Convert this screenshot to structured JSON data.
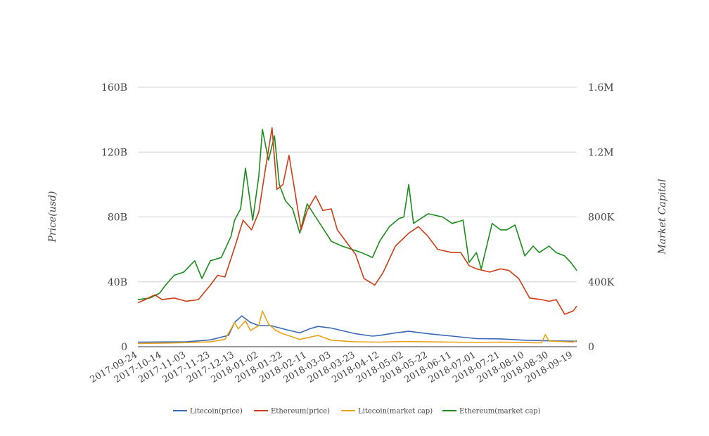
{
  "chart_data": {
    "type": "line",
    "x_axis": {
      "type": "date",
      "range": [
        "2017-09-24",
        "2018-09-22"
      ],
      "tick_labels": [
        "2017-09-24",
        "2017-10-14",
        "2017-11-03",
        "2017-11-23",
        "2017-12-13",
        "2018-01-02",
        "2018-01-22",
        "2018-02-11",
        "2018-03-03",
        "2018-03-23",
        "2018-04-12",
        "2018-05-02",
        "2018-05-22",
        "2018-06-11",
        "2018-07-01",
        "2018-07-21",
        "2018-08-10",
        "2018-08-30",
        "2018-09-19"
      ]
    },
    "y_left": {
      "label": "Price(usd)",
      "range": [
        0,
        160000000000
      ],
      "ticks": [
        0,
        40000000000,
        80000000000,
        120000000000,
        160000000000
      ],
      "tick_labels": [
        "0",
        "40B",
        "80B",
        "120B",
        "160B"
      ]
    },
    "y_right": {
      "label": "Market Capital",
      "range": [
        0,
        1600000
      ],
      "ticks": [
        0,
        400000,
        800000,
        1200000,
        1600000
      ],
      "tick_labels": [
        "0",
        "400K",
        "800K",
        "1.2M",
        "1.6M"
      ]
    },
    "grid": "horizontal",
    "legend_position": "bottom",
    "series": [
      {
        "name": "Litecoin(price)",
        "color": "#3a68b8",
        "axis": "left",
        "points": [
          [
            "2017-09-24",
            2800000000.0
          ],
          [
            "2017-10-14",
            2900000000.0
          ],
          [
            "2017-11-03",
            3000000000.0
          ],
          [
            "2017-11-23",
            4200000000.0
          ],
          [
            "2017-12-08",
            7000000000.0
          ],
          [
            "2017-12-13",
            15000000000.0
          ],
          [
            "2017-12-19",
            19000000000.0
          ],
          [
            "2017-12-26",
            15000000000.0
          ],
          [
            "2018-01-02",
            13000000000.0
          ],
          [
            "2018-01-12",
            13000000000.0
          ],
          [
            "2018-01-22",
            11000000000.0
          ],
          [
            "2018-02-05",
            8500000000.0
          ],
          [
            "2018-02-13",
            11000000000.0
          ],
          [
            "2018-02-20",
            12500000000.0
          ],
          [
            "2018-03-03",
            11500000000.0
          ],
          [
            "2018-03-23",
            8000000000.0
          ],
          [
            "2018-04-06",
            6500000000.0
          ],
          [
            "2018-04-12",
            7000000000.0
          ],
          [
            "2018-04-25",
            8500000000.0
          ],
          [
            "2018-05-06",
            9500000000.0
          ],
          [
            "2018-05-22",
            8000000000.0
          ],
          [
            "2018-06-11",
            6500000000.0
          ],
          [
            "2018-07-01",
            5000000000.0
          ],
          [
            "2018-07-21",
            4800000000.0
          ],
          [
            "2018-08-10",
            4000000000.0
          ],
          [
            "2018-08-30",
            3600000000.0
          ],
          [
            "2018-09-19",
            3400000000.0
          ],
          [
            "2018-09-22",
            3300000000.0
          ]
        ]
      },
      {
        "name": "Ethereum(price)",
        "color": "#cc3d14",
        "axis": "left",
        "points": [
          [
            "2017-09-24",
            27000000000.0
          ],
          [
            "2017-09-30",
            29000000000.0
          ],
          [
            "2017-10-08",
            32000000000.0
          ],
          [
            "2017-10-14",
            29000000000.0
          ],
          [
            "2017-10-24",
            30000000000.0
          ],
          [
            "2017-11-03",
            28000000000.0
          ],
          [
            "2017-11-13",
            29000000000.0
          ],
          [
            "2017-11-23",
            38000000000.0
          ],
          [
            "2017-11-29",
            44000000000.0
          ],
          [
            "2017-12-05",
            43000000000.0
          ],
          [
            "2017-12-13",
            61000000000.0
          ],
          [
            "2017-12-20",
            78000000000.0
          ],
          [
            "2017-12-27",
            72000000000.0
          ],
          [
            "2018-01-02",
            83000000000.0
          ],
          [
            "2018-01-08",
            112000000000.0
          ],
          [
            "2018-01-13",
            135000000000.0
          ],
          [
            "2018-01-17",
            97000000000.0
          ],
          [
            "2018-01-22",
            100000000000.0
          ],
          [
            "2018-01-27",
            118000000000.0
          ],
          [
            "2018-02-01",
            95000000000.0
          ],
          [
            "2018-02-06",
            72000000000.0
          ],
          [
            "2018-02-11",
            84000000000.0
          ],
          [
            "2018-02-18",
            93000000000.0
          ],
          [
            "2018-02-24",
            84000000000.0
          ],
          [
            "2018-03-03",
            85000000000.0
          ],
          [
            "2018-03-08",
            72000000000.0
          ],
          [
            "2018-03-18",
            62000000000.0
          ],
          [
            "2018-03-23",
            57000000000.0
          ],
          [
            "2018-03-30",
            42000000000.0
          ],
          [
            "2018-04-08",
            38000000000.0
          ],
          [
            "2018-04-15",
            46000000000.0
          ],
          [
            "2018-04-25",
            62000000000.0
          ],
          [
            "2018-05-06",
            70000000000.0
          ],
          [
            "2018-05-14",
            74000000000.0
          ],
          [
            "2018-05-22",
            68000000000.0
          ],
          [
            "2018-05-30",
            60000000000.0
          ],
          [
            "2018-06-11",
            58000000000.0
          ],
          [
            "2018-06-18",
            58000000000.0
          ],
          [
            "2018-06-25",
            50000000000.0
          ],
          [
            "2018-07-01",
            48000000000.0
          ],
          [
            "2018-07-12",
            46000000000.0
          ],
          [
            "2018-07-21",
            48000000000.0
          ],
          [
            "2018-07-28",
            47000000000.0
          ],
          [
            "2018-08-05",
            42000000000.0
          ],
          [
            "2018-08-14",
            30000000000.0
          ],
          [
            "2018-08-24",
            29000000000.0
          ],
          [
            "2018-08-30",
            28000000000.0
          ],
          [
            "2018-09-05",
            29000000000.0
          ],
          [
            "2018-09-12",
            20000000000.0
          ],
          [
            "2018-09-19",
            22000000000.0
          ],
          [
            "2018-09-22",
            25000000000.0
          ]
        ]
      },
      {
        "name": "Litecoin(market cap)",
        "color": "#e8a317",
        "axis": "right",
        "points": [
          [
            "2017-09-24",
            20000
          ],
          [
            "2017-10-14",
            22000
          ],
          [
            "2017-11-03",
            25000
          ],
          [
            "2017-11-23",
            30000
          ],
          [
            "2017-12-05",
            45000
          ],
          [
            "2017-12-10",
            110000
          ],
          [
            "2017-12-13",
            150000
          ],
          [
            "2017-12-16",
            110000
          ],
          [
            "2017-12-22",
            160000
          ],
          [
            "2017-12-26",
            100000
          ],
          [
            "2018-01-02",
            130000
          ],
          [
            "2018-01-05",
            220000
          ],
          [
            "2018-01-10",
            140000
          ],
          [
            "2018-01-16",
            100000
          ],
          [
            "2018-01-22",
            80000
          ],
          [
            "2018-02-05",
            45000
          ],
          [
            "2018-02-11",
            55000
          ],
          [
            "2018-02-20",
            70000
          ],
          [
            "2018-03-03",
            40000
          ],
          [
            "2018-03-23",
            30000
          ],
          [
            "2018-04-12",
            28000
          ],
          [
            "2018-05-02",
            32000
          ],
          [
            "2018-05-22",
            30000
          ],
          [
            "2018-06-11",
            28000
          ],
          [
            "2018-07-01",
            26000
          ],
          [
            "2018-07-21",
            28000
          ],
          [
            "2018-08-10",
            25000
          ],
          [
            "2018-08-24",
            24000
          ],
          [
            "2018-08-27",
            75000
          ],
          [
            "2018-08-30",
            35000
          ],
          [
            "2018-09-19",
            28000
          ],
          [
            "2018-09-22",
            40000
          ]
        ]
      },
      {
        "name": "Ethereum(market cap)",
        "color": "#1b8c1b",
        "axis": "right",
        "points": [
          [
            "2017-09-24",
            290000
          ],
          [
            "2017-10-04",
            300000
          ],
          [
            "2017-10-12",
            330000
          ],
          [
            "2017-10-17",
            380000
          ],
          [
            "2017-10-24",
            440000
          ],
          [
            "2017-11-01",
            460000
          ],
          [
            "2017-11-10",
            530000
          ],
          [
            "2017-11-16",
            420000
          ],
          [
            "2017-11-23",
            530000
          ],
          [
            "2017-12-02",
            550000
          ],
          [
            "2017-12-10",
            680000
          ],
          [
            "2017-12-13",
            780000
          ],
          [
            "2017-12-18",
            850000
          ],
          [
            "2017-12-22",
            1100000
          ],
          [
            "2017-12-28",
            780000
          ],
          [
            "2018-01-02",
            1050000
          ],
          [
            "2018-01-05",
            1340000
          ],
          [
            "2018-01-10",
            1150000
          ],
          [
            "2018-01-15",
            1300000
          ],
          [
            "2018-01-19",
            1000000
          ],
          [
            "2018-01-24",
            900000
          ],
          [
            "2018-01-30",
            850000
          ],
          [
            "2018-02-05",
            700000
          ],
          [
            "2018-02-11",
            880000
          ],
          [
            "2018-02-18",
            800000
          ],
          [
            "2018-02-25",
            720000
          ],
          [
            "2018-03-03",
            650000
          ],
          [
            "2018-03-12",
            620000
          ],
          [
            "2018-03-20",
            600000
          ],
          [
            "2018-03-28",
            580000
          ],
          [
            "2018-04-06",
            550000
          ],
          [
            "2018-04-12",
            650000
          ],
          [
            "2018-04-20",
            740000
          ],
          [
            "2018-04-28",
            790000
          ],
          [
            "2018-05-02",
            800000
          ],
          [
            "2018-05-06",
            1000000
          ],
          [
            "2018-05-10",
            760000
          ],
          [
            "2018-05-22",
            820000
          ],
          [
            "2018-06-03",
            800000
          ],
          [
            "2018-06-11",
            760000
          ],
          [
            "2018-06-20",
            780000
          ],
          [
            "2018-06-25",
            520000
          ],
          [
            "2018-07-01",
            580000
          ],
          [
            "2018-07-05",
            480000
          ],
          [
            "2018-07-14",
            760000
          ],
          [
            "2018-07-21",
            720000
          ],
          [
            "2018-07-26",
            720000
          ],
          [
            "2018-08-02",
            750000
          ],
          [
            "2018-08-10",
            560000
          ],
          [
            "2018-08-17",
            620000
          ],
          [
            "2018-08-22",
            580000
          ],
          [
            "2018-08-30",
            620000
          ],
          [
            "2018-09-05",
            580000
          ],
          [
            "2018-09-12",
            560000
          ],
          [
            "2018-09-17",
            520000
          ],
          [
            "2018-09-22",
            470000
          ]
        ]
      }
    ]
  }
}
